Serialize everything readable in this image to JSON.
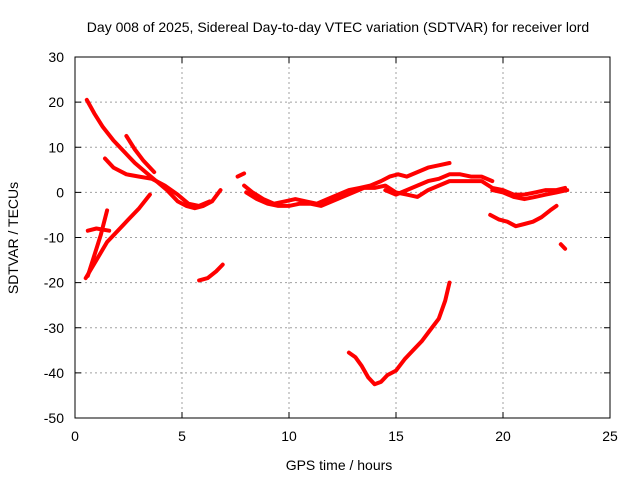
{
  "chart_data": {
    "type": "line",
    "title": "Day 008 of 2025, Sidereal Day-to-day VTEC variation (SDTVAR) for receiver lord",
    "xlabel": "GPS time / hours",
    "ylabel": "SDTVAR / TECUs",
    "xlim": [
      0,
      25
    ],
    "ylim": [
      -50,
      30
    ],
    "xticks": [
      0,
      5,
      10,
      15,
      20,
      25
    ],
    "yticks": [
      -50,
      -40,
      -30,
      -20,
      -10,
      0,
      10,
      20,
      30
    ],
    "grid": true,
    "color": "#ff0000",
    "series": [
      {
        "points": [
          [
            0.55,
            20.5
          ],
          [
            0.9,
            17.5
          ],
          [
            1.3,
            14.5
          ],
          [
            1.8,
            11.5
          ],
          [
            2.3,
            9
          ],
          [
            2.8,
            6.5
          ],
          [
            3.3,
            4.5
          ],
          [
            3.8,
            2.5
          ],
          [
            4.3,
            0.5
          ],
          [
            4.8,
            -2
          ],
          [
            5.2,
            -3
          ],
          [
            5.6,
            -3.5
          ],
          [
            6,
            -3
          ],
          [
            6.4,
            -2
          ],
          [
            6.8,
            0.5
          ]
        ]
      },
      {
        "points": [
          [
            1.4,
            7.5
          ],
          [
            1.8,
            5.5
          ],
          [
            2.4,
            4
          ],
          [
            3,
            3.5
          ],
          [
            3.6,
            3
          ],
          [
            4.2,
            1.5
          ],
          [
            4.8,
            -0.5
          ],
          [
            5.3,
            -2.5
          ],
          [
            5.8,
            -3
          ],
          [
            6.3,
            -2
          ]
        ]
      },
      {
        "points": [
          [
            2.4,
            12.5
          ],
          [
            2.8,
            9.5
          ],
          [
            3.2,
            7
          ],
          [
            3.7,
            4.5
          ]
        ]
      },
      {
        "points": [
          [
            0.5,
            -19
          ],
          [
            1,
            -15
          ],
          [
            1.5,
            -11
          ],
          [
            2,
            -8.5
          ],
          [
            2.5,
            -6
          ],
          [
            3,
            -3.5
          ],
          [
            3.5,
            -0.5
          ]
        ]
      },
      {
        "points": [
          [
            0.6,
            -18.5
          ],
          [
            0.9,
            -14
          ],
          [
            1.2,
            -9.5
          ],
          [
            1.5,
            -4
          ]
        ]
      },
      {
        "points": [
          [
            0.6,
            -8.5
          ],
          [
            1,
            -8
          ],
          [
            1.6,
            -8.5
          ]
        ]
      },
      {
        "points": [
          [
            5.8,
            -19.5
          ],
          [
            6.2,
            -19
          ],
          [
            6.6,
            -17.5
          ],
          [
            6.9,
            -16
          ]
        ]
      },
      {
        "points": [
          [
            7.6,
            3.5
          ],
          [
            7.9,
            4.2
          ]
        ]
      },
      {
        "points": [
          [
            7.9,
            1.5
          ],
          [
            8.3,
            0
          ],
          [
            8.8,
            -1.5
          ],
          [
            9.3,
            -2.5
          ],
          [
            9.8,
            -2
          ],
          [
            10.3,
            -1.5
          ],
          [
            10.8,
            -2
          ],
          [
            11.3,
            -2.5
          ],
          [
            11.8,
            -1.5
          ],
          [
            12.3,
            -0.5
          ],
          [
            12.8,
            0.5
          ],
          [
            13.3,
            1
          ],
          [
            13.8,
            1.5
          ],
          [
            14.3,
            2.5
          ],
          [
            14.7,
            3.5
          ],
          [
            15.1,
            4
          ],
          [
            15.5,
            3.5
          ],
          [
            16,
            4.5
          ],
          [
            16.5,
            5.5
          ],
          [
            17,
            6
          ],
          [
            17.5,
            6.5
          ]
        ]
      },
      {
        "points": [
          [
            8,
            0
          ],
          [
            8.5,
            -1.5
          ],
          [
            9,
            -2.5
          ],
          [
            9.5,
            -3
          ],
          [
            10,
            -3
          ],
          [
            10.5,
            -2.5
          ],
          [
            11,
            -2.5
          ],
          [
            11.5,
            -3
          ],
          [
            12,
            -2
          ],
          [
            12.5,
            -1
          ],
          [
            13,
            0
          ],
          [
            13.5,
            1
          ],
          [
            14,
            1
          ],
          [
            14.5,
            1.5
          ],
          [
            15,
            0
          ],
          [
            15.5,
            -0.5
          ],
          [
            16,
            -1
          ],
          [
            16.5,
            0.5
          ],
          [
            17,
            1.5
          ],
          [
            17.5,
            2.5
          ],
          [
            18,
            2.5
          ],
          [
            18.5,
            2.5
          ],
          [
            19,
            2.5
          ],
          [
            19.5,
            1
          ],
          [
            20,
            0.5
          ],
          [
            20.5,
            -0.5
          ],
          [
            21,
            -0.5
          ],
          [
            21.5,
            0
          ],
          [
            22,
            0.5
          ],
          [
            22.5,
            0.5
          ],
          [
            22.9,
            1
          ]
        ]
      },
      {
        "points": [
          [
            14.5,
            0.5
          ],
          [
            15,
            -0.5
          ],
          [
            15.5,
            0.5
          ],
          [
            16,
            1.5
          ],
          [
            16.5,
            2.5
          ],
          [
            17,
            3
          ],
          [
            17.5,
            4
          ],
          [
            18,
            4
          ],
          [
            18.5,
            3.5
          ],
          [
            19,
            3.5
          ],
          [
            19.5,
            2.5
          ]
        ]
      },
      {
        "points": [
          [
            19.5,
            0.5
          ],
          [
            20,
            0
          ],
          [
            20.5,
            -1
          ],
          [
            21,
            -1.5
          ],
          [
            21.5,
            -1
          ],
          [
            22,
            -0.5
          ],
          [
            22.5,
            0
          ],
          [
            23,
            0.5
          ]
        ]
      },
      {
        "points": [
          [
            19.4,
            -5
          ],
          [
            19.8,
            -6
          ],
          [
            20.2,
            -6.5
          ],
          [
            20.6,
            -7.5
          ],
          [
            21,
            -7
          ],
          [
            21.4,
            -6.5
          ],
          [
            21.8,
            -5.5
          ],
          [
            22.2,
            -4
          ],
          [
            22.5,
            -3
          ]
        ]
      },
      {
        "points": [
          [
            22.7,
            -11.5
          ],
          [
            22.9,
            -12.5
          ]
        ]
      },
      {
        "points": [
          [
            12.8,
            -35.5
          ],
          [
            13.1,
            -36.5
          ],
          [
            13.4,
            -38.5
          ],
          [
            13.7,
            -41
          ],
          [
            14,
            -42.5
          ],
          [
            14.3,
            -42
          ],
          [
            14.6,
            -40.5
          ],
          [
            15,
            -39.5
          ],
          [
            15.4,
            -37
          ],
          [
            15.8,
            -35
          ],
          [
            16.2,
            -33
          ],
          [
            16.6,
            -30.5
          ],
          [
            17,
            -28
          ],
          [
            17.3,
            -24
          ],
          [
            17.5,
            -20
          ]
        ]
      }
    ]
  }
}
